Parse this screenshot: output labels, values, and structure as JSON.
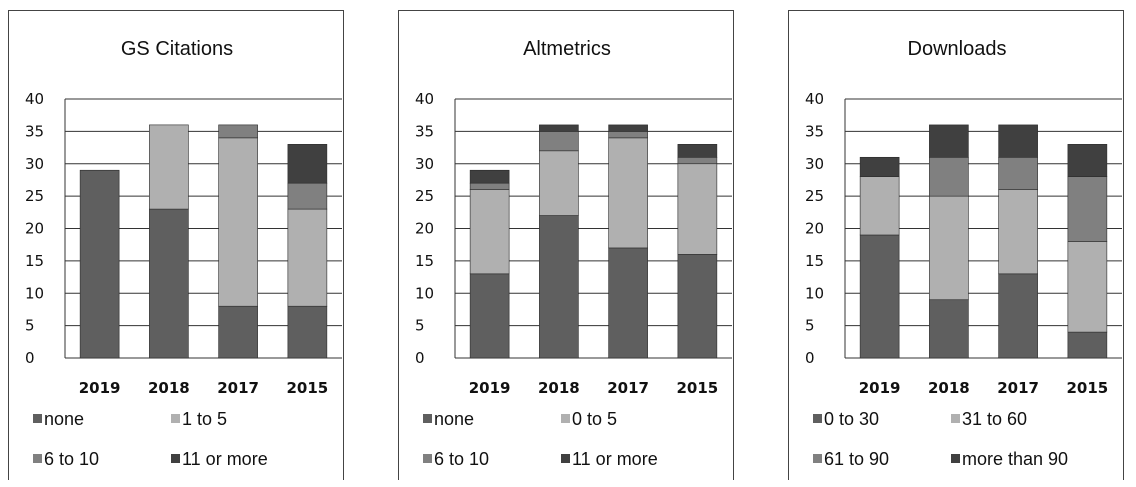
{
  "chart_data": [
    {
      "type": "bar",
      "stacked": true,
      "title": "GS Citations",
      "categories": [
        "2019",
        "2018",
        "2017",
        "2015"
      ],
      "ylim": [
        0,
        40
      ],
      "yticks": [
        0,
        5,
        10,
        15,
        20,
        25,
        30,
        35,
        40
      ],
      "grid": true,
      "legend_position": "bottom",
      "series": [
        {
          "name": "none",
          "color": "#5f5f5f",
          "values": [
            29,
            23,
            8,
            8
          ]
        },
        {
          "name": "1 to 5",
          "color": "#b0b0b0",
          "values": [
            0,
            13,
            26,
            15
          ]
        },
        {
          "name": "6 to 10",
          "color": "#808080",
          "values": [
            0,
            0,
            2,
            4
          ]
        },
        {
          "name": "11 or more",
          "color": "#404040",
          "values": [
            0,
            0,
            0,
            6
          ]
        }
      ]
    },
    {
      "type": "bar",
      "stacked": true,
      "title": "Altmetrics",
      "categories": [
        "2019",
        "2018",
        "2017",
        "2015"
      ],
      "ylim": [
        0,
        40
      ],
      "yticks": [
        0,
        5,
        10,
        15,
        20,
        25,
        30,
        35,
        40
      ],
      "grid": true,
      "legend_position": "bottom",
      "series": [
        {
          "name": "none",
          "color": "#5f5f5f",
          "values": [
            13,
            22,
            17,
            16
          ]
        },
        {
          "name": "0 to 5",
          "color": "#b0b0b0",
          "values": [
            13,
            10,
            17,
            14
          ]
        },
        {
          "name": "6 to 10",
          "color": "#808080",
          "values": [
            1,
            3,
            1,
            1
          ]
        },
        {
          "name": "11 or more",
          "color": "#404040",
          "values": [
            2,
            1,
            1,
            2
          ]
        }
      ]
    },
    {
      "type": "bar",
      "stacked": true,
      "title": "Downloads",
      "categories": [
        "2019",
        "2018",
        "2017",
        "2015"
      ],
      "ylim": [
        0,
        40
      ],
      "yticks": [
        0,
        5,
        10,
        15,
        20,
        25,
        30,
        35,
        40
      ],
      "grid": true,
      "legend_position": "bottom",
      "series": [
        {
          "name": "0 to 30",
          "color": "#5f5f5f",
          "values": [
            19,
            9,
            13,
            4
          ]
        },
        {
          "name": "31 to 60",
          "color": "#b0b0b0",
          "values": [
            9,
            16,
            13,
            14
          ]
        },
        {
          "name": "61 to 90",
          "color": "#808080",
          "values": [
            0,
            6,
            5,
            10
          ]
        },
        {
          "name": "more than 90",
          "color": "#404040",
          "values": [
            3,
            5,
            5,
            5
          ]
        }
      ]
    }
  ]
}
